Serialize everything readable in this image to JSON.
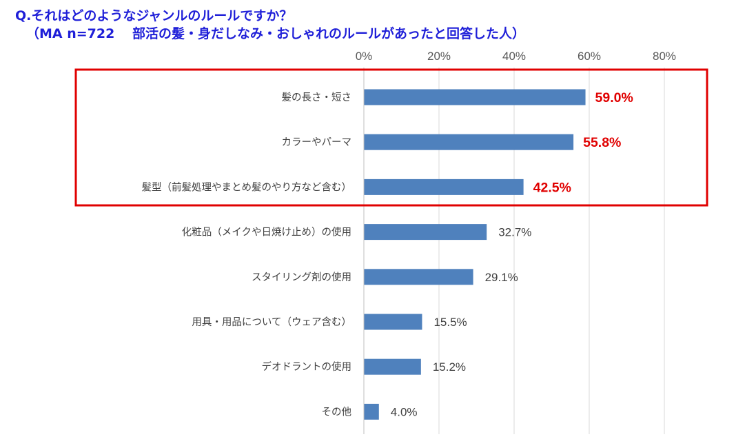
{
  "title_line1": "Q.それはどのようなジャンルのルールですか？",
  "title_line2": "（MA n=722　 部活の髪・身だしなみ・おしゃれのルールがあったと回答した人）",
  "chart_data": {
    "type": "bar",
    "orientation": "horizontal",
    "title": "Q.それはどのようなジャンルのルールですか？",
    "subtitle": "（MA n=722　 部活の髪・身だしなみ・おしゃれのルールがあったと回答した人）",
    "xlim": [
      0,
      90
    ],
    "ticks": [
      0,
      20,
      40,
      60,
      80
    ],
    "tick_labels": [
      "0%",
      "20%",
      "40%",
      "60%",
      "80%"
    ],
    "grid": true,
    "bar_color": "#4f81bd",
    "highlight_color": "#e00000",
    "highlight_box": "first three categories",
    "categories": [
      "髪の長さ・短さ",
      "カラーやパーマ",
      "髪型（前髪処理やまとめ髪のやり方など含む）",
      "化粧品（メイクや日焼け止め）の使用",
      "スタイリング剤の使用",
      "用具・用品について（ウェア含む）",
      "デオドラントの使用",
      "その他"
    ],
    "values": [
      59.0,
      55.8,
      42.5,
      32.7,
      29.1,
      15.5,
      15.2,
      4.0
    ],
    "value_labels": [
      "59.0%",
      "55.8%",
      "42.5%",
      "32.7%",
      "29.1%",
      "15.5%",
      "15.2%",
      "4.0%"
    ],
    "highlighted": [
      true,
      true,
      true,
      false,
      false,
      false,
      false,
      false
    ]
  }
}
